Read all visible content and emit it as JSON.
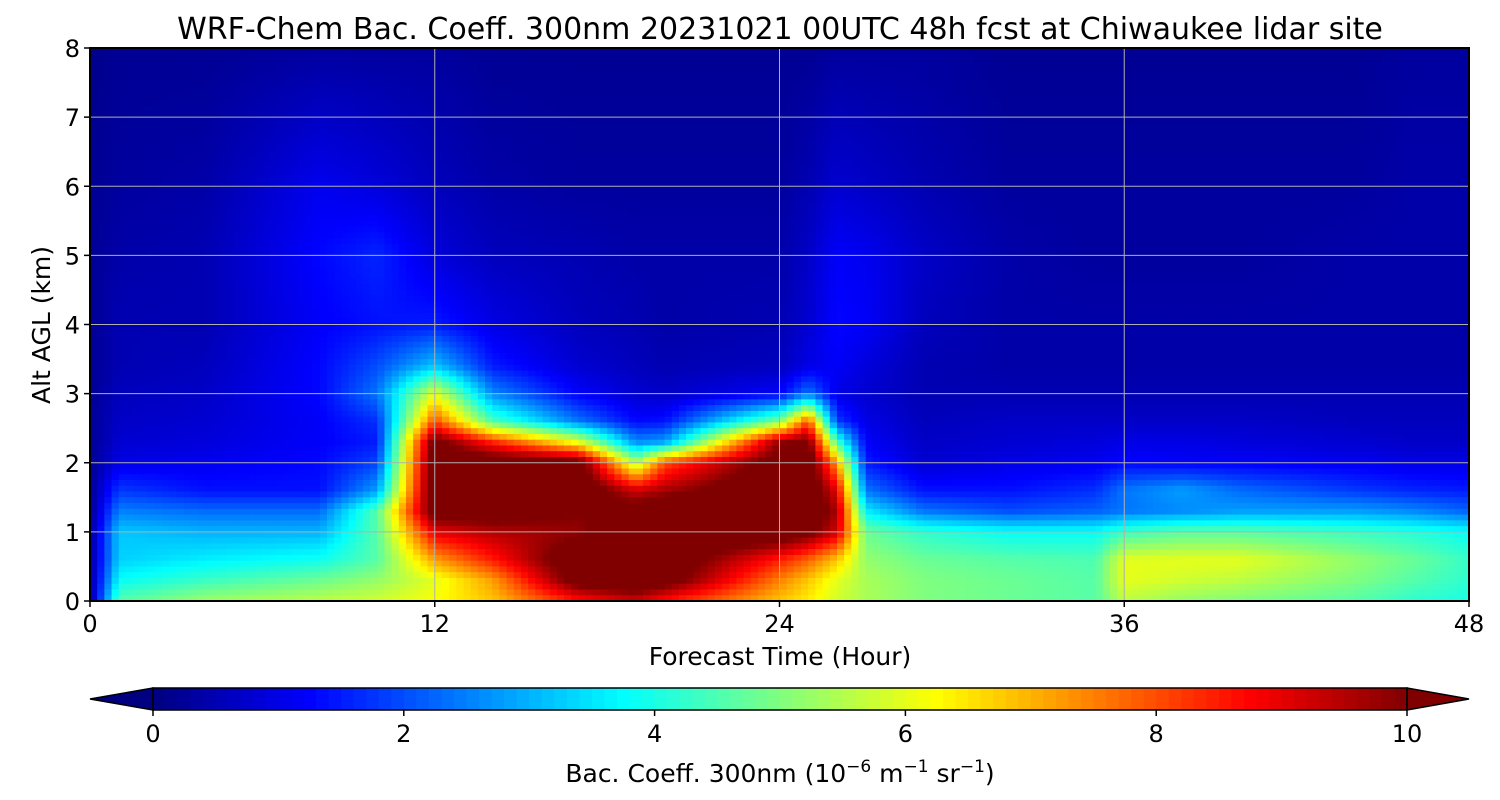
{
  "chart_data": {
    "type": "heatmap",
    "title": "WRF-Chem Bac. Coeff. 300nm  20231021 00UTC 48h fcst at Chiwaukee lidar site",
    "xlabel": "Forecast Time (Hour)",
    "ylabel": "Alt AGL (km)",
    "xlim": [
      0,
      48
    ],
    "ylim": [
      0,
      8
    ],
    "x_ticks": [
      0,
      12,
      24,
      36,
      48
    ],
    "y_ticks": [
      0,
      1,
      2,
      3,
      4,
      5,
      6,
      7,
      8
    ],
    "grid": true,
    "colormap": "jet",
    "colorbar": {
      "orientation": "horizontal",
      "placement": "bottom",
      "range": [
        0,
        10
      ],
      "ticks": [
        0,
        2,
        4,
        6,
        8,
        10
      ],
      "extend": "both",
      "label_prefix": "Bac. Coeff. 300nm  (10",
      "label_exp1": "−6",
      "label_mid": " m",
      "label_exp2": "−1",
      "label_mid2": " sr",
      "label_exp3": "−1",
      "label_suffix": ")"
    },
    "x": [
      0,
      1,
      4,
      8,
      10,
      12,
      14,
      17,
      19,
      20,
      24,
      25,
      26,
      27,
      29,
      32,
      35,
      36,
      38,
      40,
      44,
      46,
      48
    ],
    "y": [
      0,
      0.3,
      0.6,
      1,
      1.3,
      1.6,
      2,
      2.3,
      2.6,
      3,
      3.4,
      4,
      5,
      6,
      8
    ],
    "z": [
      [
        0.3,
        4.6,
        5.3,
        5.6,
        5.8,
        6.2,
        6.8,
        8.6,
        9.2,
        8.6,
        6.8,
        6.4,
        5.8,
        5.4,
        5.0,
        4.8,
        4.6,
        5.6,
        5.2,
        5.0,
        4.6,
        4.2,
        4.0
      ],
      [
        0.3,
        3.8,
        4.3,
        4.8,
        5.2,
        6.0,
        7.2,
        10.5,
        11.0,
        10.5,
        7.5,
        6.8,
        6.0,
        5.4,
        5.0,
        4.8,
        4.6,
        6.0,
        5.8,
        5.6,
        5.0,
        4.6,
        4.2
      ],
      [
        0.3,
        3.3,
        3.6,
        3.9,
        4.6,
        7.2,
        8.5,
        10.8,
        11.0,
        10.8,
        8.5,
        7.8,
        6.8,
        5.2,
        4.8,
        4.6,
        4.5,
        6.0,
        6.0,
        6.0,
        5.2,
        4.8,
        4.3
      ],
      [
        0.3,
        3.2,
        3.0,
        3.0,
        4.6,
        9.0,
        9.5,
        9.8,
        10.8,
        11.0,
        10.8,
        10.3,
        9.2,
        4.8,
        4.2,
        3.8,
        3.8,
        4.3,
        4.6,
        4.6,
        4.3,
        4.1,
        3.8
      ],
      [
        0.2,
        2.5,
        2.3,
        2.3,
        4.6,
        10.6,
        10.6,
        10.0,
        10.5,
        11.0,
        11.0,
        10.8,
        9.6,
        3.6,
        2.4,
        2.0,
        2.2,
        2.4,
        2.6,
        2.8,
        2.8,
        2.6,
        2.2
      ],
      [
        0.2,
        1.8,
        1.4,
        1.4,
        2.8,
        10.8,
        10.8,
        10.8,
        9.2,
        9.6,
        11.0,
        10.8,
        9.0,
        2.4,
        1.4,
        1.4,
        1.7,
        2.4,
        2.8,
        2.3,
        1.8,
        1.6,
        1.5
      ],
      [
        0.2,
        1.0,
        1.1,
        1.3,
        1.9,
        10.8,
        10.8,
        10.5,
        5.4,
        8.0,
        10.6,
        10.8,
        7.2,
        1.5,
        0.8,
        1.0,
        1.1,
        1.3,
        1.2,
        1.2,
        1.1,
        1.0,
        1.0
      ],
      [
        0.2,
        0.8,
        0.9,
        1.2,
        1.5,
        10.4,
        8.4,
        6.0,
        2.6,
        2.8,
        9.8,
        10.2,
        4.4,
        1.2,
        0.7,
        0.8,
        0.9,
        1.0,
        1.0,
        0.9,
        0.8,
        0.7,
        0.7
      ],
      [
        0.2,
        0.7,
        0.8,
        1.2,
        1.7,
        8.0,
        4.5,
        2.4,
        1.3,
        1.4,
        5.0,
        8.0,
        1.8,
        1.0,
        0.6,
        0.7,
        0.7,
        0.7,
        0.7,
        0.7,
        0.6,
        0.6,
        0.6
      ],
      [
        0.2,
        0.6,
        0.7,
        1.3,
        2.4,
        6.0,
        2.6,
        1.2,
        0.8,
        0.7,
        1.2,
        2.4,
        1.0,
        0.8,
        0.5,
        0.5,
        0.5,
        0.5,
        0.5,
        0.5,
        0.5,
        0.5,
        0.5
      ],
      [
        0.2,
        0.5,
        0.6,
        1.3,
        2.0,
        3.2,
        1.5,
        0.8,
        0.6,
        0.5,
        0.6,
        1.0,
        1.2,
        0.9,
        0.5,
        0.4,
        0.4,
        0.4,
        0.4,
        0.4,
        0.4,
        0.4,
        0.4
      ],
      [
        0.2,
        0.5,
        0.5,
        1.2,
        1.4,
        1.5,
        1.0,
        0.6,
        0.5,
        0.4,
        0.5,
        0.8,
        1.3,
        1.2,
        0.6,
        0.4,
        0.4,
        0.4,
        0.4,
        0.4,
        0.4,
        0.4,
        0.4
      ],
      [
        0.2,
        0.4,
        0.5,
        1.3,
        1.6,
        0.9,
        0.6,
        0.5,
        0.4,
        0.4,
        0.4,
        0.7,
        1.2,
        1.1,
        0.7,
        0.4,
        0.3,
        0.3,
        0.3,
        0.3,
        0.4,
        0.4,
        0.4
      ],
      [
        0.2,
        0.3,
        0.4,
        1.1,
        0.9,
        0.6,
        0.4,
        0.3,
        0.3,
        0.3,
        0.3,
        0.5,
        0.8,
        0.7,
        0.5,
        0.3,
        0.3,
        0.3,
        0.3,
        0.3,
        0.3,
        0.4,
        0.4
      ],
      [
        0.1,
        0.2,
        0.2,
        0.3,
        0.3,
        0.3,
        0.2,
        0.2,
        0.2,
        0.2,
        0.2,
        0.2,
        0.3,
        0.3,
        0.3,
        0.2,
        0.2,
        0.2,
        0.2,
        0.2,
        0.2,
        0.3,
        0.3
      ]
    ]
  }
}
